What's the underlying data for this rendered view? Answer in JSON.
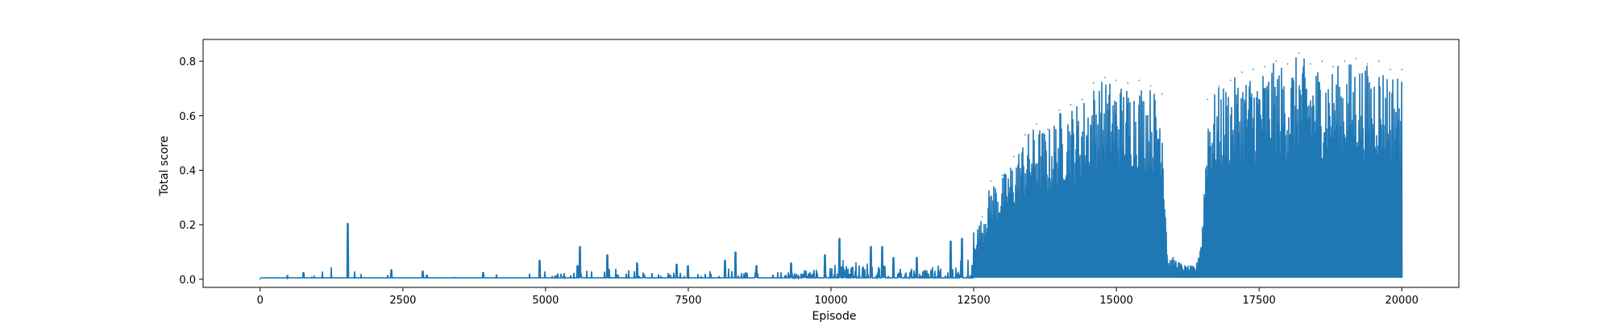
{
  "chart_data": {
    "type": "line",
    "title": "",
    "xlabel": "Episode",
    "ylabel": "Total score",
    "xlim": [
      -1000,
      21000
    ],
    "ylim": [
      -0.03,
      0.88
    ],
    "xticks": [
      0,
      2500,
      5000,
      7500,
      10000,
      12500,
      15000,
      17500,
      20000
    ],
    "xtick_labels": [
      "0",
      "2500",
      "5000",
      "7500",
      "10000",
      "12500",
      "15000",
      "17500",
      "20000"
    ],
    "yticks": [
      0.0,
      0.2,
      0.4,
      0.6,
      0.8
    ],
    "ytick_labels": [
      "0.0",
      "0.2",
      "0.4",
      "0.6",
      "0.8"
    ],
    "grid": false,
    "legend": "none",
    "series_color": "#1f77b4",
    "series": [
      {
        "name": "",
        "x": [
          0,
          480,
          760,
          1530,
          2300,
          2850,
          2920,
          3900,
          4900,
          5560,
          5600,
          6080,
          6600,
          7300,
          7500,
          8150,
          8330,
          8700,
          9300,
          9900,
          10150,
          10700,
          10900,
          11100,
          11500,
          12100,
          12300,
          12500,
          12650,
          12800,
          13000,
          13200,
          13400,
          13600,
          13800,
          14000,
          14200,
          14400,
          14600,
          14800,
          15000,
          15200,
          15400,
          15600,
          15800,
          15900,
          16000,
          16200,
          16400,
          16500,
          16600,
          16800,
          17000,
          17200,
          17400,
          17600,
          17800,
          18000,
          18200,
          18400,
          18600,
          18800,
          19000,
          19200,
          19400,
          19600,
          19800,
          20000
        ],
        "y": [
          0.0,
          0.01,
          0.025,
          0.205,
          0.035,
          0.03,
          0.015,
          0.025,
          0.07,
          0.05,
          0.12,
          0.09,
          0.06,
          0.055,
          0.05,
          0.07,
          0.1,
          0.05,
          0.06,
          0.09,
          0.15,
          0.12,
          0.12,
          0.08,
          0.08,
          0.14,
          0.15,
          0.17,
          0.23,
          0.36,
          0.38,
          0.45,
          0.53,
          0.57,
          0.55,
          0.62,
          0.64,
          0.66,
          0.72,
          0.74,
          0.73,
          0.72,
          0.73,
          0.71,
          0.68,
          0.07,
          0.08,
          0.05,
          0.05,
          0.18,
          0.66,
          0.71,
          0.73,
          0.76,
          0.77,
          0.78,
          0.8,
          0.79,
          0.83,
          0.79,
          0.8,
          0.78,
          0.8,
          0.81,
          0.79,
          0.8,
          0.77,
          0.77
        ]
      }
    ]
  }
}
